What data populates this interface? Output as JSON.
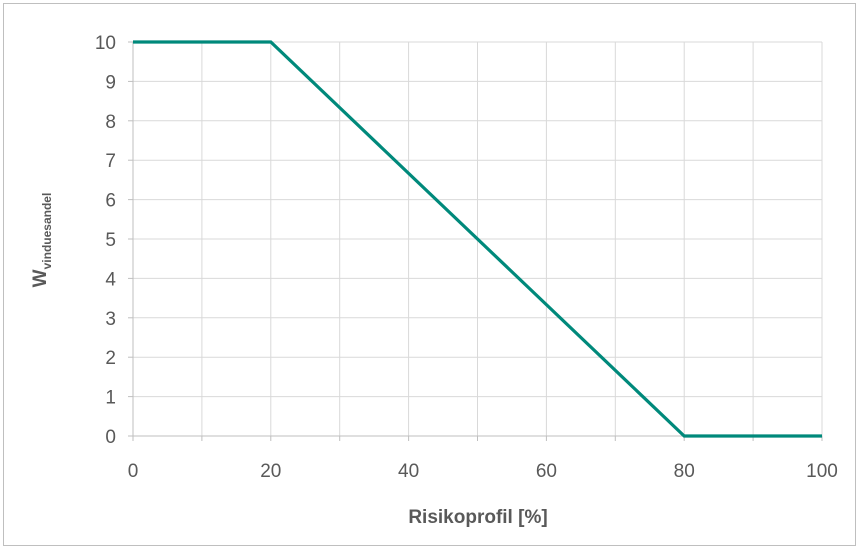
{
  "chart_data": {
    "type": "line",
    "title": "",
    "xlabel": "Risikoprofil [%]",
    "ylabel": "W",
    "ylabel_subscript": "vinduesandel",
    "xlim": [
      0,
      100
    ],
    "ylim": [
      0,
      10
    ],
    "x_ticks": [
      0,
      20,
      40,
      60,
      80,
      100
    ],
    "y_ticks": [
      0,
      1,
      2,
      3,
      4,
      5,
      6,
      7,
      8,
      9,
      10
    ],
    "x_gridlines": [
      0,
      10,
      20,
      30,
      40,
      50,
      60,
      70,
      80,
      90,
      100
    ],
    "grid": true,
    "legend": "none",
    "series": [
      {
        "color": "#00897b",
        "x": [
          0,
          20,
          80,
          100
        ],
        "y": [
          10,
          10,
          0,
          0
        ]
      }
    ]
  }
}
